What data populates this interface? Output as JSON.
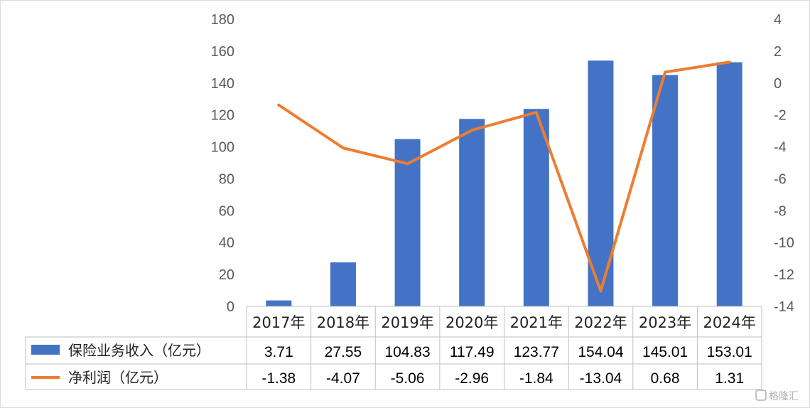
{
  "chart_data": {
    "type": "bar+line",
    "categories": [
      "2017年",
      "2018年",
      "2019年",
      "2020年",
      "2021年",
      "2022年",
      "2023年",
      "2024年"
    ],
    "series": [
      {
        "name": "保险业务收入（亿元）",
        "type": "bar",
        "axis": "left",
        "color": "#4472c4",
        "values": [
          3.71,
          27.55,
          104.83,
          117.49,
          123.77,
          154.04,
          145.01,
          153.01
        ],
        "labels": [
          "3.71",
          "27.55",
          "104.83",
          "117.49",
          "123.77",
          "154.04",
          "145.01",
          "153.01"
        ]
      },
      {
        "name": "净利润（亿元）",
        "type": "line",
        "axis": "right",
        "color": "#ed7d31",
        "values": [
          -1.38,
          -4.07,
          -5.06,
          -2.96,
          -1.84,
          -13.04,
          0.68,
          1.31
        ],
        "labels": [
          "-1.38",
          "-4.07",
          "-5.06",
          "-2.96",
          "-1.84",
          "-13.04",
          "0.68",
          "1.31"
        ]
      }
    ],
    "left_axis": {
      "min": 0,
      "max": 180,
      "step": 20
    },
    "right_axis": {
      "min": -14,
      "max": 4,
      "step": 2
    },
    "data_table": true,
    "grid": false
  },
  "watermark": "格隆汇"
}
